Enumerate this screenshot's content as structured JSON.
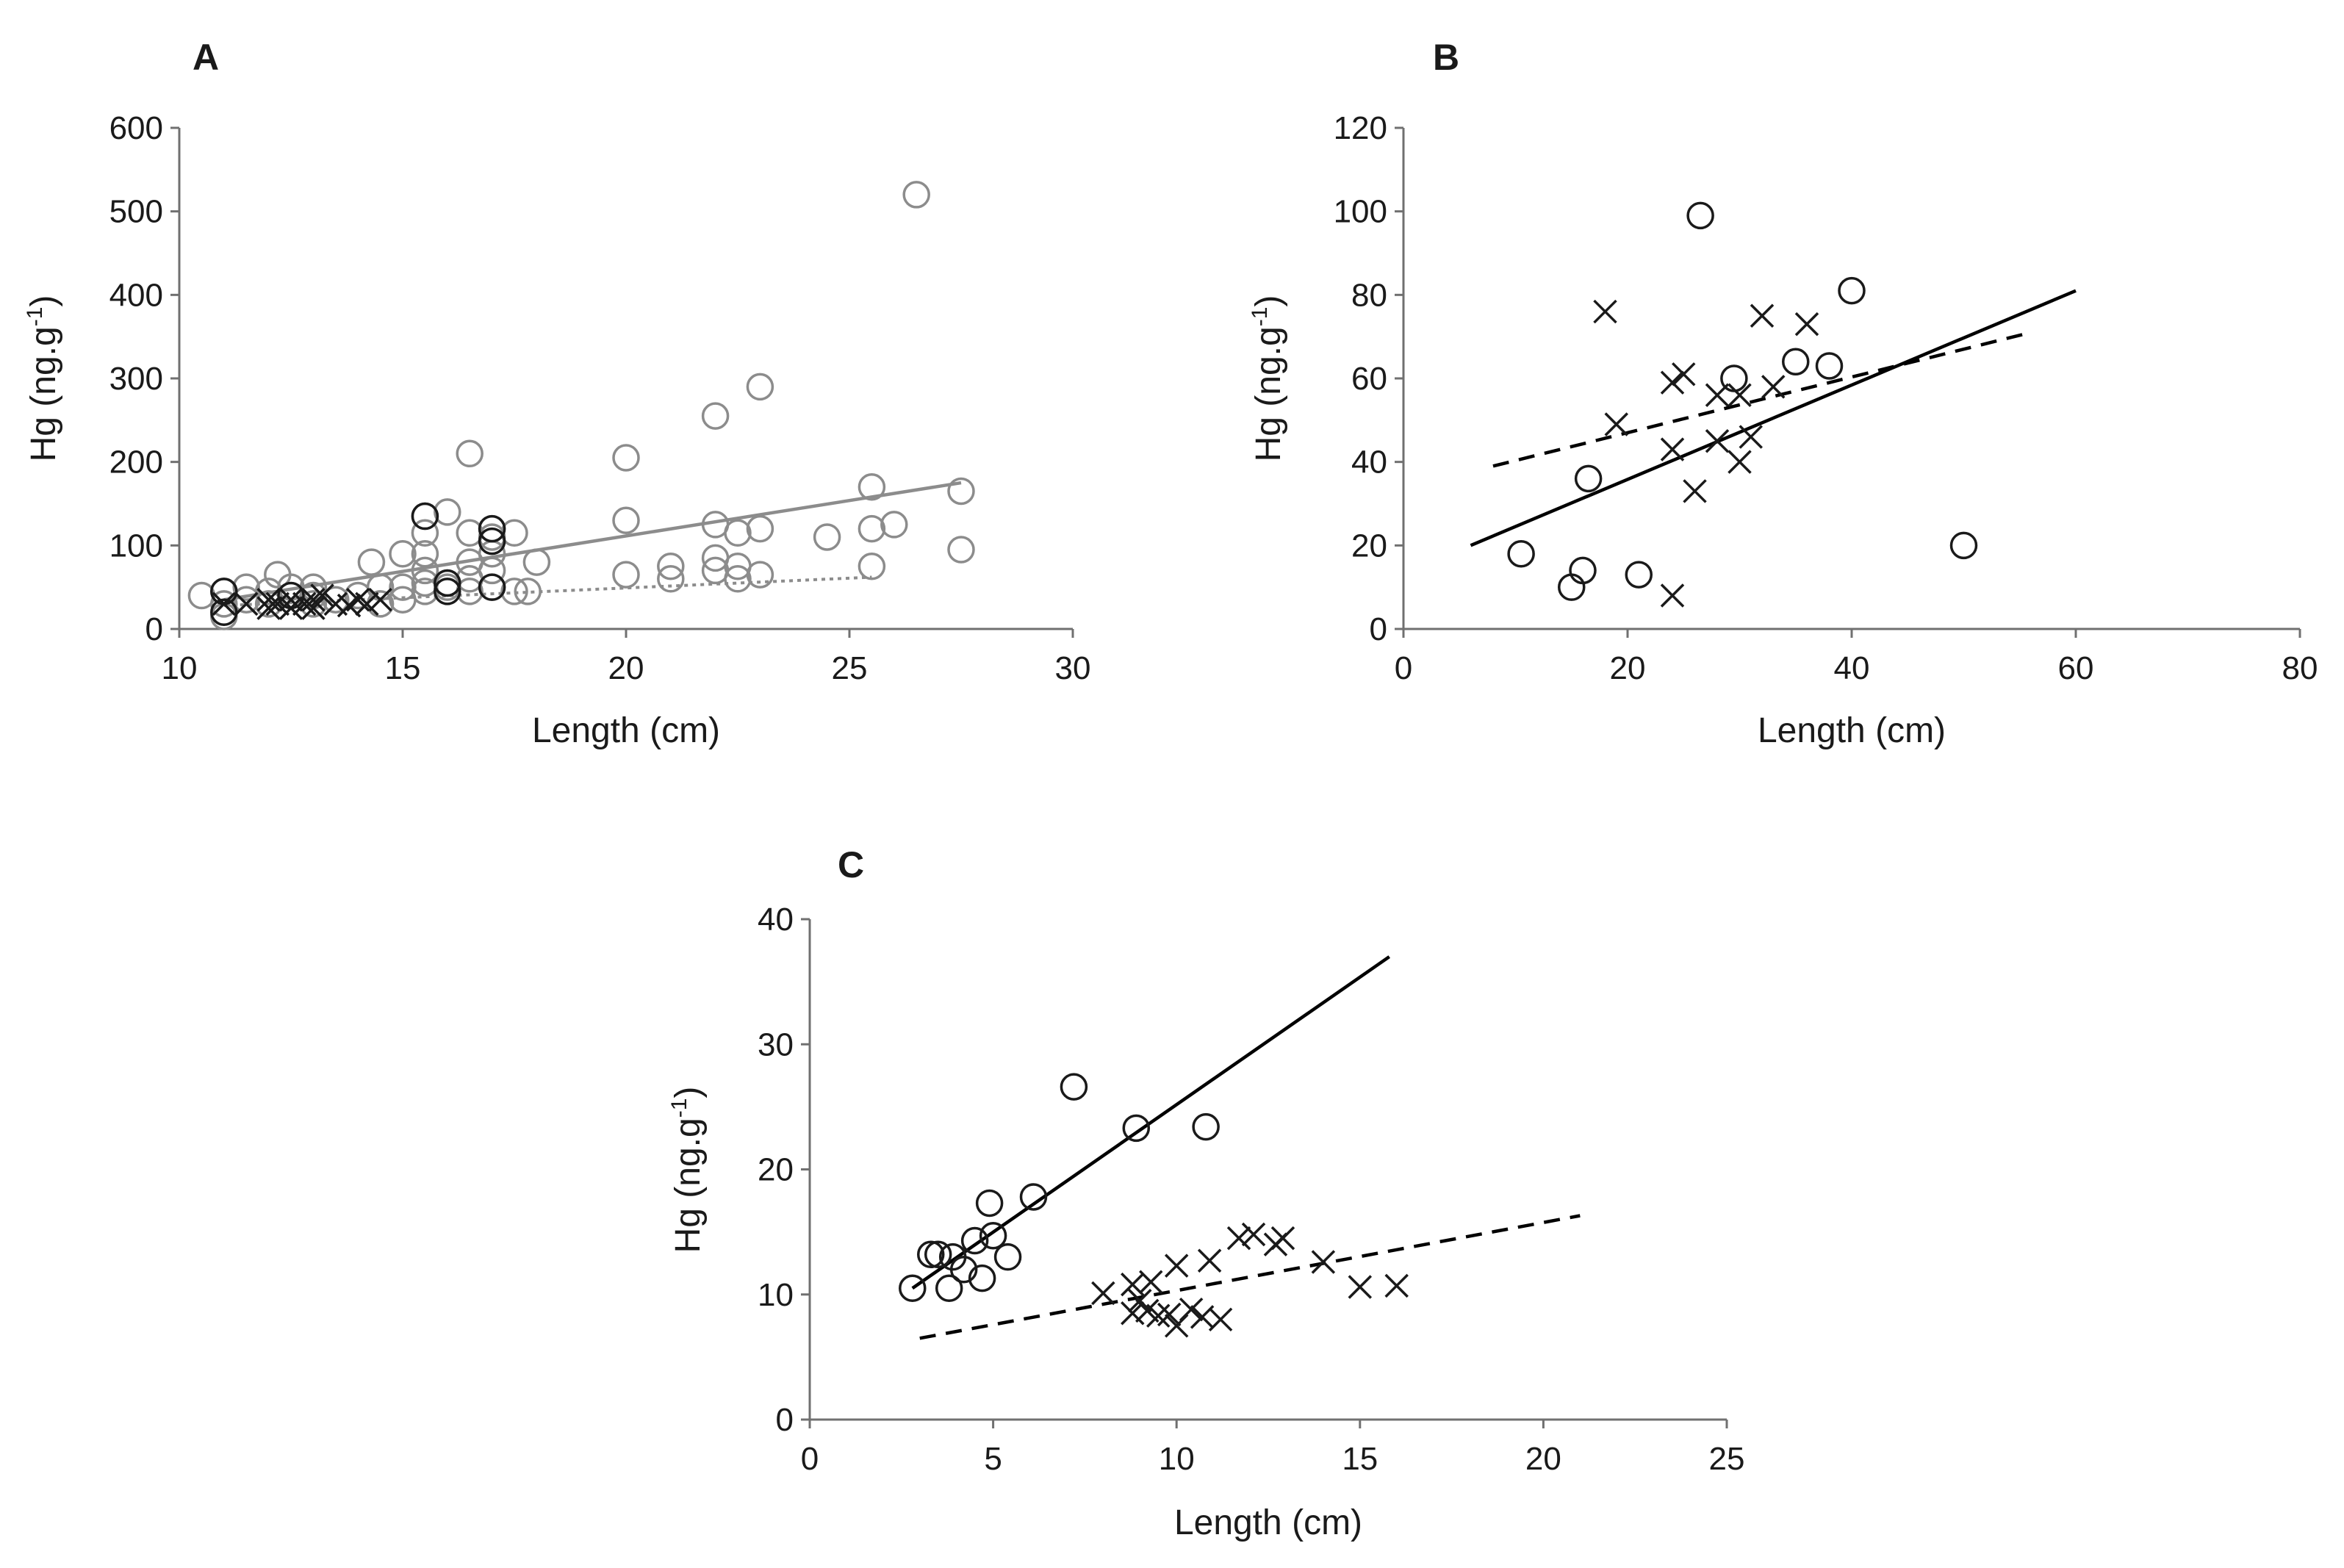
{
  "chart_data": [
    {
      "panel": "A",
      "type": "scatter",
      "xlabel": "Length (cm)",
      "ylabel": "Hg (ng.g-1)",
      "ylabel_base": "Hg (ng.g",
      "ylabel_sup": "-1",
      "ylabel_end": ")",
      "xlim": [
        10,
        30
      ],
      "ylim": [
        0,
        600
      ],
      "xticks": [
        10,
        15,
        20,
        25,
        30
      ],
      "yticks": [
        0,
        100,
        200,
        300,
        400,
        500,
        600
      ],
      "series": [
        {
          "name": "circles (grey)",
          "marker": "circle",
          "color": "#8c8c8c",
          "points": [
            [
              10.5,
              40
            ],
            [
              11,
              15
            ],
            [
              11,
              30
            ],
            [
              11,
              45
            ],
            [
              11.5,
              35
            ],
            [
              11.5,
              50
            ],
            [
              12,
              30
            ],
            [
              12,
              45
            ],
            [
              12.2,
              65
            ],
            [
              12.5,
              50
            ],
            [
              13,
              30
            ],
            [
              13,
              40
            ],
            [
              13,
              50
            ],
            [
              13.5,
              35
            ],
            [
              14,
              40
            ],
            [
              14.3,
              80
            ],
            [
              14.5,
              50
            ],
            [
              14.5,
              30
            ],
            [
              15,
              35
            ],
            [
              15,
              50
            ],
            [
              15,
              90
            ],
            [
              15.5,
              45
            ],
            [
              15.5,
              55
            ],
            [
              15.5,
              70
            ],
            [
              15.5,
              90
            ],
            [
              15.5,
              115
            ],
            [
              15.5,
              135
            ],
            [
              16,
              50
            ],
            [
              16,
              55
            ],
            [
              16,
              140
            ],
            [
              16.5,
              45
            ],
            [
              16.5,
              60
            ],
            [
              16.5,
              80
            ],
            [
              16.5,
              115
            ],
            [
              16.5,
              210
            ],
            [
              17,
              50
            ],
            [
              17,
              70
            ],
            [
              17,
              90
            ],
            [
              17,
              110
            ],
            [
              17,
              120
            ],
            [
              17.5,
              45
            ],
            [
              17.5,
              115
            ],
            [
              17.8,
              45
            ],
            [
              18,
              80
            ],
            [
              20,
              65
            ],
            [
              20,
              130
            ],
            [
              20,
              205
            ],
            [
              21,
              60
            ],
            [
              21,
              75
            ],
            [
              22,
              70
            ],
            [
              22,
              85
            ],
            [
              22,
              125
            ],
            [
              22,
              255
            ],
            [
              22.5,
              60
            ],
            [
              22.5,
              75
            ],
            [
              22.5,
              115
            ],
            [
              23,
              65
            ],
            [
              23,
              120
            ],
            [
              23,
              290
            ],
            [
              24.5,
              110
            ],
            [
              25.5,
              75
            ],
            [
              25.5,
              120
            ],
            [
              25.5,
              170
            ],
            [
              26,
              125
            ],
            [
              26.5,
              520
            ],
            [
              27.5,
              95
            ],
            [
              27.5,
              165
            ]
          ]
        },
        {
          "name": "circles (black)",
          "marker": "circle",
          "color": "#1a1a1a",
          "points": [
            [
              11,
              45
            ],
            [
              11,
              20
            ],
            [
              12.5,
              40
            ],
            [
              15.5,
              135
            ],
            [
              16,
              45
            ],
            [
              16,
              55
            ],
            [
              17,
              50
            ],
            [
              17,
              120
            ],
            [
              17,
              105
            ]
          ]
        },
        {
          "name": "crosses",
          "marker": "cross",
          "color": "#1a1a1a",
          "points": [
            [
              11,
              30
            ],
            [
              11.5,
              30
            ],
            [
              12,
              25
            ],
            [
              12,
              35
            ],
            [
              12.2,
              30
            ],
            [
              12.5,
              35
            ],
            [
              12.5,
              25
            ],
            [
              12.8,
              30
            ],
            [
              13,
              35
            ],
            [
              13,
              25
            ],
            [
              13.2,
              40
            ],
            [
              13.5,
              30
            ],
            [
              13.8,
              28
            ],
            [
              14,
              35
            ],
            [
              14.2,
              30
            ],
            [
              14.5,
              35
            ]
          ]
        }
      ],
      "trendlines": [
        {
          "name": "solid grey",
          "style": "solid",
          "color": "#8c8c8c",
          "x": [
            11,
            27.5
          ],
          "y": [
            35,
            175
          ]
        },
        {
          "name": "dotted grey",
          "style": "dotted",
          "color": "#8c8c8c",
          "x": [
            11,
            25.5
          ],
          "y": [
            28,
            62
          ]
        }
      ]
    },
    {
      "panel": "B",
      "type": "scatter",
      "xlabel": "Length (cm)",
      "ylabel": "Hg (ng.g-1)",
      "ylabel_base": "Hg (ng.g",
      "ylabel_sup": "-1",
      "ylabel_end": ")",
      "xlim": [
        0,
        80
      ],
      "ylim": [
        0,
        120
      ],
      "xticks": [
        0,
        20,
        40,
        60,
        80
      ],
      "yticks": [
        0,
        20,
        40,
        60,
        80,
        100,
        120
      ],
      "series": [
        {
          "name": "circles",
          "marker": "circle",
          "color": "#1a1a1a",
          "points": [
            [
              10.5,
              18
            ],
            [
              15,
              10
            ],
            [
              16,
              14
            ],
            [
              16.5,
              36
            ],
            [
              21,
              13
            ],
            [
              26.5,
              99
            ],
            [
              29.5,
              60
            ],
            [
              35,
              64
            ],
            [
              38,
              63
            ],
            [
              40,
              81
            ],
            [
              50,
              20
            ]
          ]
        },
        {
          "name": "crosses",
          "marker": "cross",
          "color": "#1a1a1a",
          "points": [
            [
              18,
              76
            ],
            [
              19,
              49
            ],
            [
              24,
              8
            ],
            [
              24,
              43
            ],
            [
              24,
              59
            ],
            [
              25,
              61
            ],
            [
              26,
              33
            ],
            [
              28,
              45
            ],
            [
              28,
              56
            ],
            [
              30,
              40
            ],
            [
              30,
              56
            ],
            [
              31,
              46
            ],
            [
              32,
              75
            ],
            [
              33,
              58
            ],
            [
              36,
              73
            ]
          ]
        }
      ],
      "trendlines": [
        {
          "name": "solid",
          "style": "solid",
          "color": "#000000",
          "x": [
            6,
            60
          ],
          "y": [
            20,
            81
          ]
        },
        {
          "name": "dashed",
          "style": "dashed",
          "color": "#000000",
          "x": [
            8,
            56
          ],
          "y": [
            39,
            71
          ]
        }
      ]
    },
    {
      "panel": "C",
      "type": "scatter",
      "xlabel": "Length (cm)",
      "ylabel": "Hg (ng.g-1)",
      "ylabel_base": "Hg (ng.g",
      "ylabel_sup": "-1",
      "ylabel_end": ")",
      "xlim": [
        0,
        25
      ],
      "ylim": [
        0,
        40
      ],
      "xticks": [
        0,
        5,
        10,
        15,
        20,
        25
      ],
      "yticks": [
        0,
        10,
        20,
        30,
        40
      ],
      "series": [
        {
          "name": "circles",
          "marker": "circle",
          "color": "#1a1a1a",
          "points": [
            [
              2.8,
              10.5
            ],
            [
              3.3,
              13.2
            ],
            [
              3.5,
              13.2
            ],
            [
              3.8,
              10.5
            ],
            [
              3.9,
              13
            ],
            [
              4.2,
              12
            ],
            [
              4.5,
              14.3
            ],
            [
              4.7,
              11.3
            ],
            [
              4.9,
              17.3
            ],
            [
              5,
              14.7
            ],
            [
              5.4,
              13
            ],
            [
              6.1,
              17.8
            ],
            [
              7.2,
              26.6
            ],
            [
              8.9,
              23.3
            ],
            [
              10.8,
              23.4
            ]
          ]
        },
        {
          "name": "crosses",
          "marker": "cross",
          "color": "#1a1a1a",
          "points": [
            [
              8,
              10.1
            ],
            [
              8.8,
              8.5
            ],
            [
              8.8,
              10.8
            ],
            [
              9,
              9.5
            ],
            [
              9.2,
              8.7
            ],
            [
              9.3,
              11
            ],
            [
              9.5,
              8.3
            ],
            [
              9.8,
              8.4
            ],
            [
              10,
              7.5
            ],
            [
              10,
              12.3
            ],
            [
              10.4,
              8.8
            ],
            [
              10.7,
              8.2
            ],
            [
              10.9,
              12.7
            ],
            [
              11.2,
              8
            ],
            [
              11.7,
              14.5
            ],
            [
              12.1,
              14.8
            ],
            [
              12.7,
              14
            ],
            [
              12.9,
              14.5
            ],
            [
              14,
              12.6
            ],
            [
              15,
              10.6
            ],
            [
              16,
              10.7
            ]
          ]
        }
      ],
      "trendlines": [
        {
          "name": "solid",
          "style": "solid",
          "color": "#000000",
          "x": [
            2.8,
            15.8
          ],
          "y": [
            10.5,
            37
          ]
        },
        {
          "name": "dashed",
          "style": "dashed",
          "color": "#000000",
          "x": [
            3,
            21
          ],
          "y": [
            6.5,
            16.3
          ]
        }
      ]
    }
  ]
}
